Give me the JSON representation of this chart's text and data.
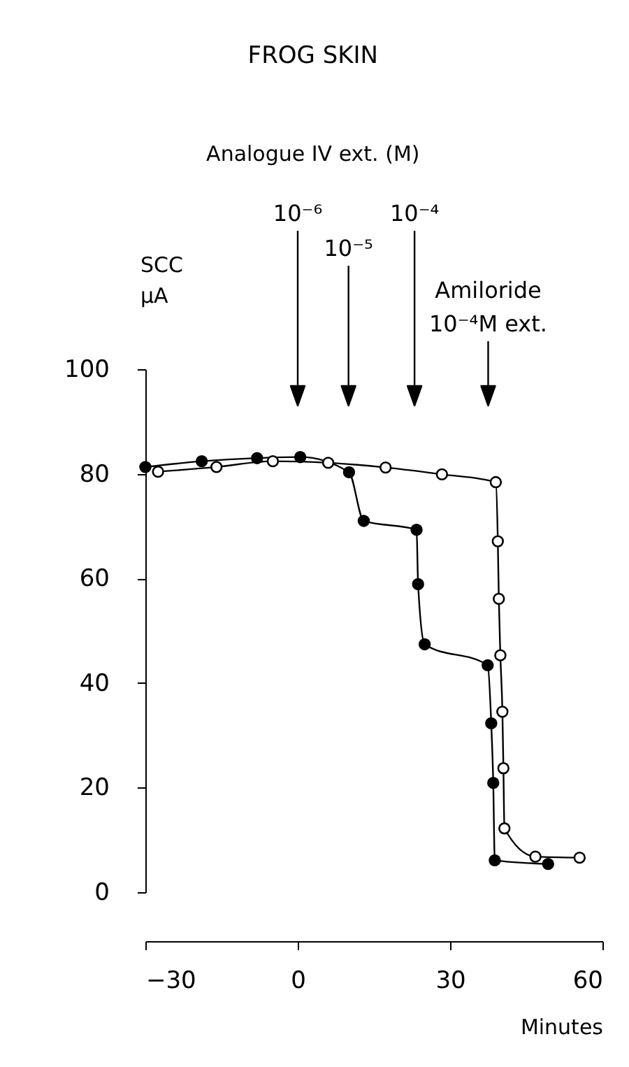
{
  "chart_data": {
    "type": "line",
    "title": "FROG SKIN",
    "xlabel": "Minutes",
    "ylabel": "SCC μA",
    "xlim": [
      -30,
      60
    ],
    "xticks": [
      -30,
      0,
      30,
      60
    ],
    "ylim": [
      0,
      100
    ],
    "yticks": [
      0,
      20,
      40,
      60,
      80,
      100
    ],
    "grid": false,
    "marker": "circle",
    "line_style": "solid",
    "series": [
      {
        "color": "#000000",
        "x": [
          -30,
          -18.9,
          -8,
          0.5,
          10.1,
          13,
          23.4,
          23.7,
          25,
          37.4,
          38.1,
          38.5,
          38.8,
          49.3
        ],
        "values": [
          81.3,
          82.4,
          83,
          83.2,
          80.3,
          71,
          69.3,
          58.9,
          47.4,
          43.4,
          32.3,
          20.9,
          6.1,
          5.4
        ]
      },
      {
        "color": "#000000",
        "x": [
          -27.5,
          -16,
          -4.9,
          6,
          17.3,
          28.4,
          39,
          39.4,
          39.6,
          39.9,
          40.3,
          40.5,
          40.7,
          46.8,
          55.5
        ],
        "values": [
          80.4,
          81.3,
          82.4,
          82.1,
          81.2,
          79.9,
          78.4,
          67.1,
          56.1,
          45.3,
          34.5,
          23.7,
          12.2,
          6.8,
          6.6
        ]
      }
    ],
    "annotations": [
      "Analogue IV ext. (M)"
    ],
    "ref_lines": [
      {
        "axis": "x",
        "value": 0,
        "label": "10⁻⁶",
        "color": "#000000"
      },
      {
        "axis": "x",
        "value": 10,
        "label": "10⁻⁵",
        "color": "#000000"
      },
      {
        "axis": "x",
        "value": 23,
        "label": "10⁻⁴",
        "color": "#000000"
      },
      {
        "axis": "x",
        "value": 37.5,
        "label": "Amiloride 10⁻⁴M ext.",
        "color": "#000000"
      }
    ]
  }
}
